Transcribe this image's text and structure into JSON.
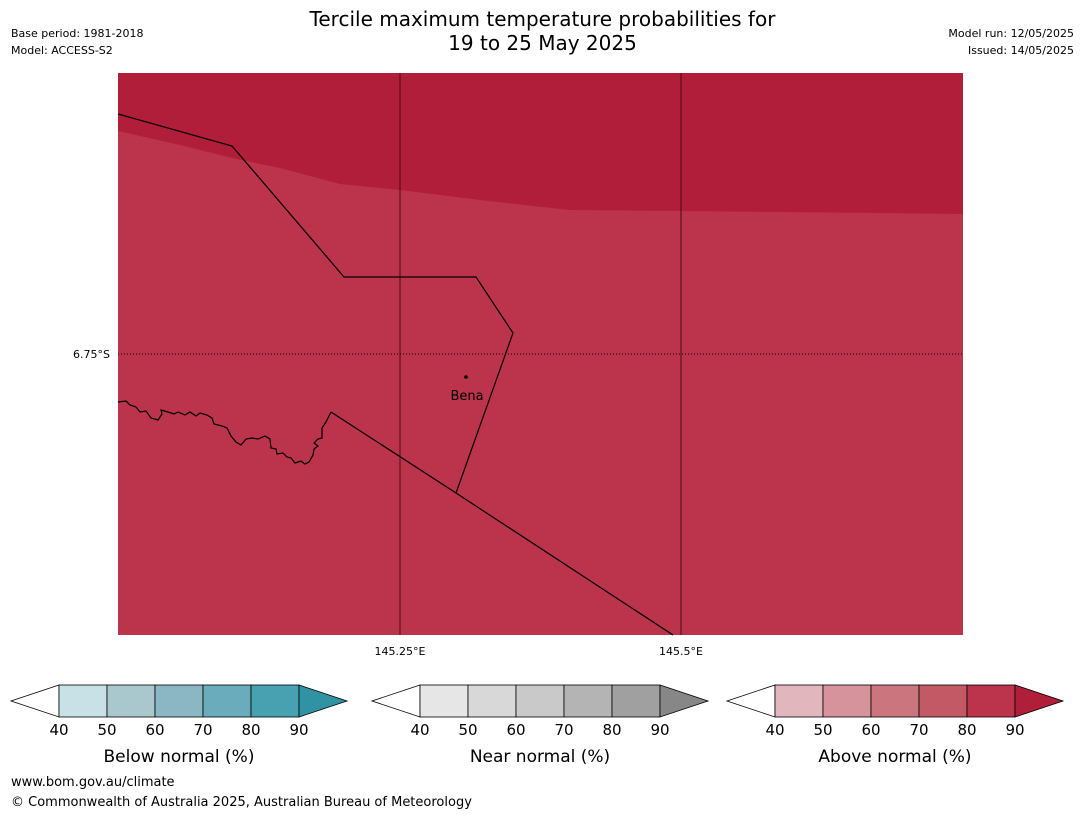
{
  "title": {
    "line1": "Tercile maximum temperature probabilities for",
    "line2": "19 to 25 May 2025"
  },
  "meta_left": {
    "base_period": "Base period: 1981-2018",
    "model": "Model: ACCESS-S2"
  },
  "meta_right": {
    "model_run": "Model run: 12/05/2025",
    "issued": "Issued: 14/05/2025"
  },
  "map": {
    "lat_gridlines": [
      "6.75°S"
    ],
    "lon_gridlines": [
      "145.25°E",
      "145.5°E"
    ],
    "place": "Bena",
    "colors": {
      "above_80_90": "#bb344b",
      "above_90": "#b01e3a",
      "border": "#000000"
    }
  },
  "colorbars": [
    {
      "name": "Below normal (%)",
      "ticks": [
        "40",
        "50",
        "60",
        "70",
        "80",
        "90"
      ],
      "colors": [
        "#ffffff",
        "#c8e1e6",
        "#a9c8cd",
        "#8bb6c3",
        "#6aacbb",
        "#47a1b0",
        "#2f93a3"
      ]
    },
    {
      "name": "Near normal (%)",
      "ticks": [
        "40",
        "50",
        "60",
        "70",
        "80",
        "90"
      ],
      "colors": [
        "#ffffff",
        "#e6e6e6",
        "#d8d8d8",
        "#c9c9c9",
        "#b4b4b4",
        "#a0a0a0",
        "#878787"
      ]
    },
    {
      "name": "Above normal (%)",
      "ticks": [
        "40",
        "50",
        "60",
        "70",
        "80",
        "90"
      ],
      "colors": [
        "#ffffff",
        "#e2b6bd",
        "#d6939b",
        "#cb767e",
        "#c35964",
        "#bb344b",
        "#b01e3a"
      ]
    }
  ],
  "footer": {
    "url": "www.bom.gov.au/climate",
    "copyright": "© Commonwealth of Australia 2025, Australian Bureau of Meteorology"
  }
}
